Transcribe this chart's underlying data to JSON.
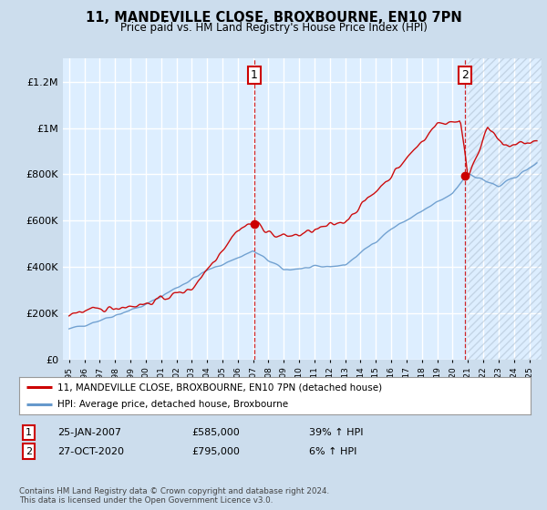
{
  "title": "11, MANDEVILLE CLOSE, BROXBOURNE, EN10 7PN",
  "subtitle": "Price paid vs. HM Land Registry's House Price Index (HPI)",
  "legend_line1": "11, MANDEVILLE CLOSE, BROXBOURNE, EN10 7PN (detached house)",
  "legend_line2": "HPI: Average price, detached house, Broxbourne",
  "sale1_date": "25-JAN-2007",
  "sale1_price": "£585,000",
  "sale1_hpi": "39% ↑ HPI",
  "sale1_year": 2007.07,
  "sale1_value": 585000,
  "sale2_date": "27-OCT-2020",
  "sale2_price": "£795,000",
  "sale2_hpi": "6% ↑ HPI",
  "sale2_year": 2020.82,
  "sale2_value": 795000,
  "footer": "Contains HM Land Registry data © Crown copyright and database right 2024.\nThis data is licensed under the Open Government Licence v3.0.",
  "ylim": [
    0,
    1300000
  ],
  "xlim_start": 1994.6,
  "xlim_end": 2025.8,
  "bg_color": "#ccdded",
  "plot_bg": "#ddeeff",
  "red_color": "#cc0000",
  "blue_color": "#6699cc",
  "grid_color": "#ffffff",
  "yticks": [
    0,
    200000,
    400000,
    600000,
    800000,
    1000000,
    1200000
  ],
  "xtick_years": [
    1995,
    1996,
    1997,
    1998,
    1999,
    2000,
    2001,
    2002,
    2003,
    2004,
    2005,
    2006,
    2007,
    2008,
    2009,
    2010,
    2011,
    2012,
    2013,
    2014,
    2015,
    2016,
    2017,
    2018,
    2019,
    2020,
    2021,
    2022,
    2023,
    2024,
    2025
  ]
}
